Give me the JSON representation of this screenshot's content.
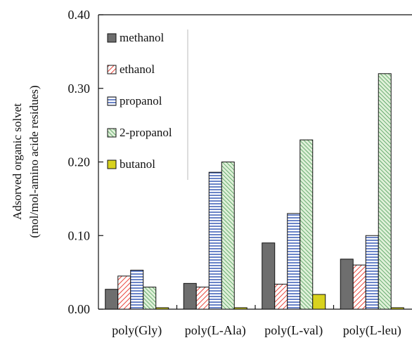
{
  "chart_data": {
    "type": "bar",
    "title": "",
    "xlabel": "",
    "ylabel_lines": [
      "Adsorved organic solvet",
      "(mol/mol-amino acide residues)"
    ],
    "ylim": [
      0,
      0.4
    ],
    "yticks": [
      "0.00",
      "0.10",
      "0.20",
      "0.30",
      "0.40"
    ],
    "categories": [
      "poly(Gly)",
      "poly(L-Ala)",
      "poly(L-val)",
      "poly(L-leu)"
    ],
    "legend_position": "top-left",
    "grid": false,
    "series": [
      {
        "name": "methanol",
        "pattern": "solid",
        "color": "#6e6e6e",
        "values": [
          0.027,
          0.035,
          0.09,
          0.068
        ]
      },
      {
        "name": "ethanol",
        "pattern": "diagonal",
        "color": "#e8463c",
        "values": [
          0.045,
          0.03,
          0.034,
          0.06
        ]
      },
      {
        "name": "propanol",
        "pattern": "horizontal",
        "color": "#2a4fb0",
        "values": [
          0.053,
          0.186,
          0.13,
          0.1
        ]
      },
      {
        "name": "2-propanol",
        "pattern": "diagonal-green",
        "color": "#2e8b3e",
        "values": [
          0.03,
          0.2,
          0.23,
          0.32
        ]
      },
      {
        "name": "butanol",
        "pattern": "solid",
        "color": "#d8d21e",
        "values": [
          0.002,
          0.002,
          0.02,
          0.002
        ]
      }
    ]
  }
}
